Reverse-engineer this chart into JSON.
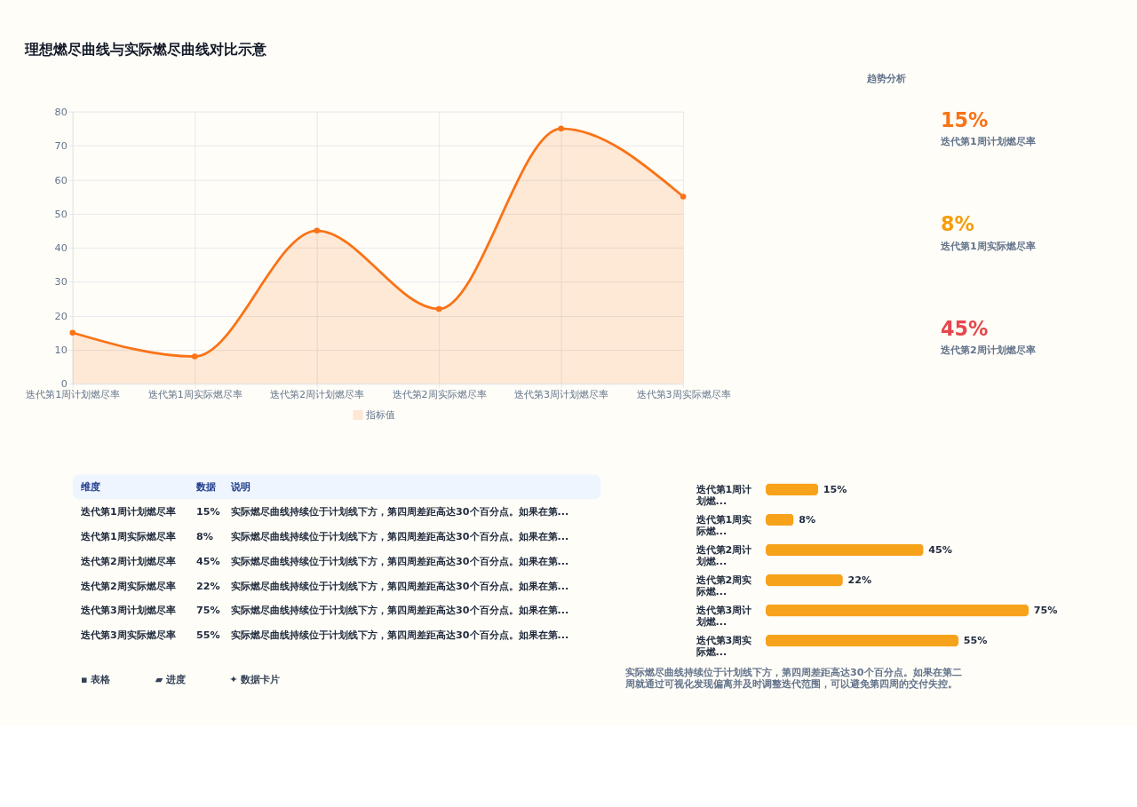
{
  "chart_data": [
    {
      "type": "area",
      "title": "理想燃尽曲线与实际燃尽曲线对比示意",
      "annotations": [
        "趋势分析"
      ],
      "categories": [
        "迭代第1周计划燃尽率",
        "迭代第1周实际燃尽率",
        "迭代第2周计划燃尽率",
        "迭代第2周实际燃尽率",
        "迭代第3周计划燃尽率",
        "迭代第3周实际燃尽率"
      ],
      "series": [
        {
          "name": "指标值",
          "color": "#f97316",
          "values": [
            15,
            8,
            45,
            22,
            75,
            55
          ]
        }
      ],
      "ylim": [
        0,
        80
      ],
      "yticks": [
        0,
        10,
        20,
        30,
        40,
        50,
        60,
        70,
        80
      ],
      "grid": true,
      "marker": "circle",
      "legend": "bottom"
    },
    {
      "type": "other",
      "categories": [
        "迭代第1周计划燃尽率",
        "迭代第1周实际燃尽率",
        "迭代第2周计划燃尽率"
      ],
      "value_labels": [
        "15%",
        "8%",
        "45%"
      ],
      "colors": [
        "#f97316",
        "#f59e0b",
        "#e5484d"
      ]
    },
    {
      "type": "other",
      "categories": [
        "迭代第1周计划燃尽率",
        "迭代第1周实际燃尽率",
        "迭代第2周计划燃尽率",
        "迭代第2周实际燃尽率",
        "迭代第3周计划燃尽率",
        "迭代第3周实际燃尽率"
      ],
      "value_labels": [
        "15%",
        "8%",
        "45%",
        "22%",
        "75%",
        "55%"
      ],
      "annotations": [
        "维度",
        "数据",
        "说明",
        "实际燃尽曲线持续位于计划线下方，第四周差距高达30个百分点。如果在第...",
        "实际燃尽曲线持续位于计划线下方，第四周差距高达30个百分点。如果在第...",
        "实际燃尽曲线持续位于计划线下方，第四周差距高达30个百分点。如果在第...",
        "实际燃尽曲线持续位于计划线下方，第四周差距高达30个百分点。如果在第...",
        "实际燃尽曲线持续位于计划线下方，第四周差距高达30个百分点。如果在第...",
        "实际燃尽曲线持续位于计划线下方，第四周差距高达30个百分点。如果在第...",
        "▪ 表格",
        "▰ 进度",
        "✦ 数据卡片"
      ]
    },
    {
      "type": "bar",
      "orientation": "horizontal",
      "categories": [
        "迭代第1周计划燃...",
        "迭代第1周实际燃...",
        "迭代第2周计划燃...",
        "迭代第2周实际燃...",
        "迭代第3周计划燃...",
        "迭代第3周实际燃..."
      ],
      "values": [
        15,
        8,
        45,
        22,
        75,
        55
      ],
      "value_labels": [
        "15%",
        "8%",
        "45%",
        "22%",
        "75%",
        "55%"
      ],
      "color": "#f7a21b",
      "tick_labels": "y",
      "annotations": [
        "实际燃尽曲线持续位于计划线下方，第四周差距高达30个百分点。如果在第二周就通过可视化发现偏离并及时调整迭代范围，可以避免第四周的交付失控。"
      ]
    }
  ]
}
